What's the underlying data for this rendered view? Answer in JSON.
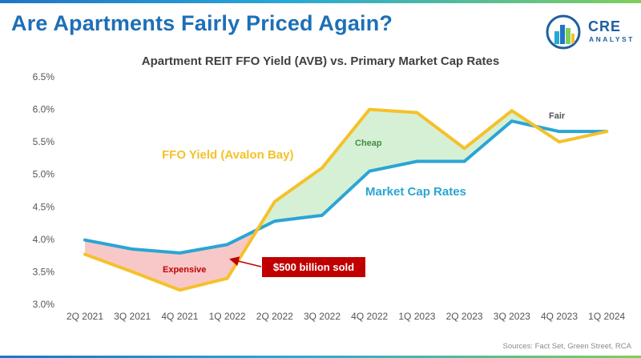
{
  "header": {
    "title": "Are Apartments Fairly Priced Again?",
    "logo_word": "CRE",
    "logo_sub": "ANALYST"
  },
  "colors": {
    "title_blue": "#1d6fb8",
    "ffo_line": "#f5c12a",
    "cap_line": "#2aa5d4",
    "cheap_fill": "#d6f0d6",
    "expensive_fill": "#f8c8c8",
    "callout_bg": "#c00000"
  },
  "chart_data": {
    "type": "line",
    "title": "Apartment REIT FFO Yield (AVB) vs. Primary Market Cap Rates",
    "categories": [
      "2Q 2021",
      "3Q 2021",
      "4Q 2021",
      "1Q 2022",
      "2Q 2022",
      "3Q 2022",
      "4Q 2022",
      "1Q 2023",
      "2Q 2023",
      "3Q 2023",
      "4Q 2023",
      "1Q 2024"
    ],
    "ylim": [
      3.0,
      6.5
    ],
    "yticks": [
      3.0,
      3.5,
      4.0,
      4.5,
      5.0,
      5.5,
      6.0,
      6.5
    ],
    "ytick_labels": [
      "3.0%",
      "3.5%",
      "4.0%",
      "4.5%",
      "5.0%",
      "5.5%",
      "6.0%",
      "6.5%"
    ],
    "grid": false,
    "series": [
      {
        "name": "FFO Yield (Avalon Bay)",
        "values": [
          3.77,
          3.5,
          3.22,
          3.4,
          4.58,
          5.1,
          6.0,
          5.95,
          5.4,
          5.98,
          5.5,
          5.66
        ]
      },
      {
        "name": "Market Cap Rates",
        "values": [
          3.99,
          3.85,
          3.79,
          3.92,
          4.28,
          4.37,
          5.05,
          5.2,
          5.2,
          5.82,
          5.66,
          5.66
        ]
      }
    ],
    "annotations": {
      "cheap": "Cheap",
      "expensive": "Expensive",
      "fair": "Fair",
      "callout": "$500 billion sold"
    },
    "source": "Sources: Fact Set, Green Street, RCA"
  }
}
